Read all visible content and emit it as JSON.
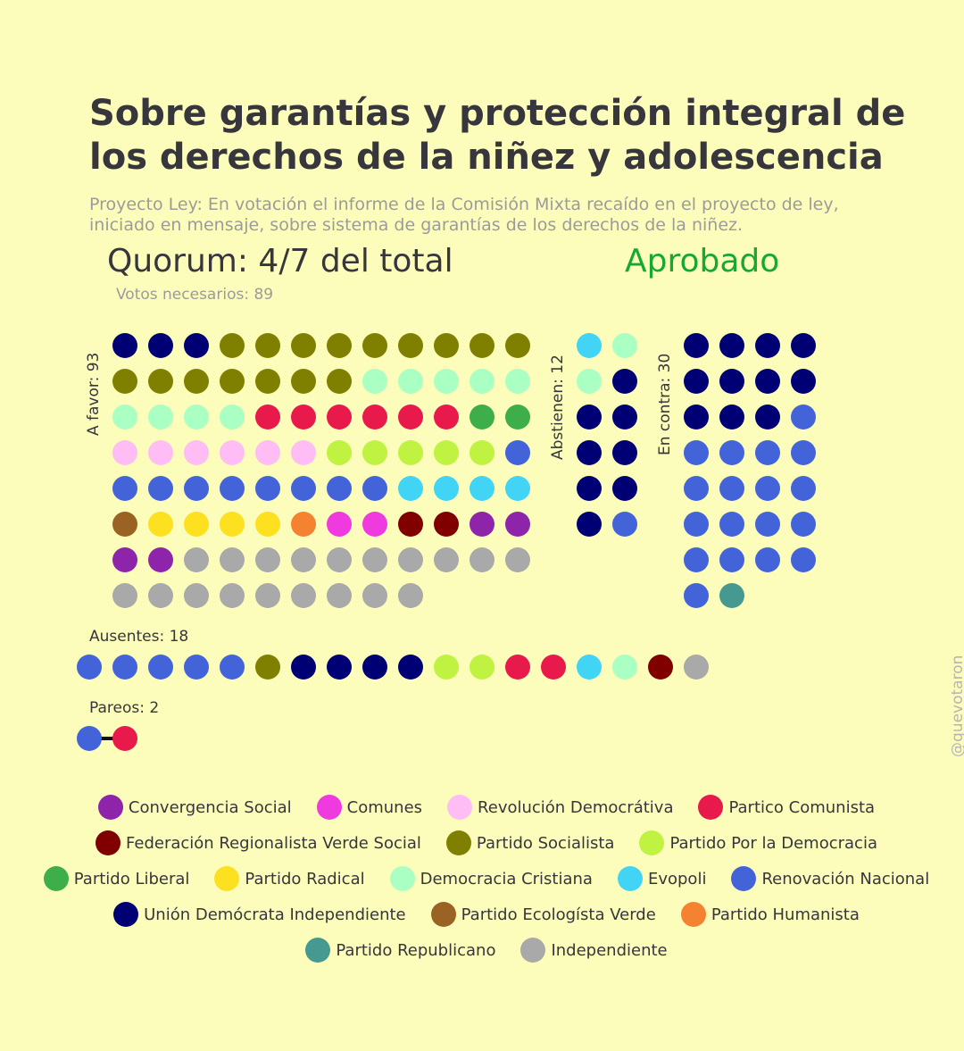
{
  "header": {
    "title": "Sobre garantías y protección integral de\nlos derechos de la niñez y adolescencia",
    "subtitle": "Proyecto Ley: En votación el informe de la Comisión Mixta recaído en el proyecto de ley,\niniciado en mensaje, sobre sistema de garantías de los derechos de la niñez.",
    "quorum": "Quorum: 4/7 del total",
    "status": "Aprobado",
    "needed": "Votos necesarios: 89"
  },
  "watermark": "@quevotaron",
  "colors": {
    "background": "#fdfdbb",
    "status": "#16a830",
    "CS": "#8e24aa",
    "COM": "#ef3ae0",
    "RD": "#ffbdf5",
    "PC": "#e8194b",
    "FRVS": "#800000",
    "PS": "#808000",
    "PPD": "#bff241",
    "PL": "#3dae4a",
    "PR": "#fde020",
    "DC": "#aaffc3",
    "EVO": "#42d4f4",
    "RN": "#4363d8",
    "UDI": "#000075",
    "PEV": "#9a6324",
    "PH": "#f58231",
    "REP": "#469990",
    "IND": "#a9a9a9"
  },
  "chart_data": {
    "type": "table",
    "groups": [
      {
        "key": "favor",
        "label": "A favor: 93",
        "count": 93,
        "parties": [
          "UDI",
          "UDI",
          "UDI",
          "PS",
          "PS",
          "PS",
          "PS",
          "PS",
          "PS",
          "PS",
          "PS",
          "PS",
          "PS",
          "PS",
          "PS",
          "PS",
          "PS",
          "PS",
          "PS",
          "DC",
          "DC",
          "DC",
          "DC",
          "DC",
          "DC",
          "DC",
          "DC",
          "DC",
          "PC",
          "PC",
          "PC",
          "PC",
          "PC",
          "PC",
          "PL",
          "PL",
          "RD",
          "RD",
          "RD",
          "RD",
          "RD",
          "RD",
          "PPD",
          "PPD",
          "PPD",
          "PPD",
          "PPD",
          "RN",
          "RN",
          "RN",
          "RN",
          "RN",
          "RN",
          "RN",
          "RN",
          "RN",
          "EVO",
          "EVO",
          "EVO",
          "EVO",
          "PEV",
          "PR",
          "PR",
          "PR",
          "PR",
          "PH",
          "COM",
          "COM",
          "FRVS",
          "FRVS",
          "CS",
          "CS",
          "CS",
          "CS",
          "IND",
          "IND",
          "IND",
          "IND",
          "IND",
          "IND",
          "IND",
          "IND",
          "IND",
          "IND",
          "IND",
          "IND",
          "IND",
          "IND",
          "IND",
          "IND",
          "IND",
          "IND",
          "IND"
        ]
      },
      {
        "key": "abstienen",
        "label": "Abstienen: 12",
        "count": 12,
        "parties": [
          "EVO",
          "DC",
          "DC",
          "UDI",
          "UDI",
          "UDI",
          "UDI",
          "UDI",
          "UDI",
          "UDI",
          "UDI",
          "RN"
        ]
      },
      {
        "key": "contra",
        "label": "En contra: 30",
        "count": 30,
        "parties": [
          "UDI",
          "UDI",
          "UDI",
          "UDI",
          "UDI",
          "UDI",
          "UDI",
          "UDI",
          "UDI",
          "UDI",
          "UDI",
          "RN",
          "RN",
          "RN",
          "RN",
          "RN",
          "RN",
          "RN",
          "RN",
          "RN",
          "RN",
          "RN",
          "RN",
          "RN",
          "RN",
          "RN",
          "RN",
          "RN",
          "RN",
          "REP"
        ]
      },
      {
        "key": "ausentes",
        "label": "Ausentes: 18",
        "count": 18,
        "parties": [
          "RN",
          "RN",
          "RN",
          "RN",
          "RN",
          "PS",
          "UDI",
          "UDI",
          "UDI",
          "UDI",
          "PPD",
          "PPD",
          "PC",
          "PC",
          "EVO",
          "DC",
          "FRVS",
          "IND"
        ]
      },
      {
        "key": "pareos",
        "label": "Pareos: 2",
        "count": 2,
        "parties": [
          "RN",
          "PC"
        ]
      }
    ],
    "legend": [
      {
        "key": "CS",
        "label": "Convergencia Social"
      },
      {
        "key": "COM",
        "label": "Comunes"
      },
      {
        "key": "RD",
        "label": "Revolución Democrátiva"
      },
      {
        "key": "PC",
        "label": "Partico Comunista"
      },
      {
        "key": "FRVS",
        "label": "Federación Regionalista Verde Social"
      },
      {
        "key": "PS",
        "label": "Partido Socialista"
      },
      {
        "key": "PPD",
        "label": "Partido Por la Democracia"
      },
      {
        "key": "PL",
        "label": "Partido Liberal"
      },
      {
        "key": "PR",
        "label": "Partido Radical"
      },
      {
        "key": "DC",
        "label": "Democracia Cristiana"
      },
      {
        "key": "EVO",
        "label": "Evopoli"
      },
      {
        "key": "RN",
        "label": "Renovación Nacional"
      },
      {
        "key": "UDI",
        "label": "Unión Demócrata Independiente"
      },
      {
        "key": "PEV",
        "label": "Partido Ecologísta Verde"
      },
      {
        "key": "PH",
        "label": "Partido Humanista"
      },
      {
        "key": "REP",
        "label": "Partido Republicano"
      },
      {
        "key": "IND",
        "label": "Independiente"
      }
    ]
  }
}
